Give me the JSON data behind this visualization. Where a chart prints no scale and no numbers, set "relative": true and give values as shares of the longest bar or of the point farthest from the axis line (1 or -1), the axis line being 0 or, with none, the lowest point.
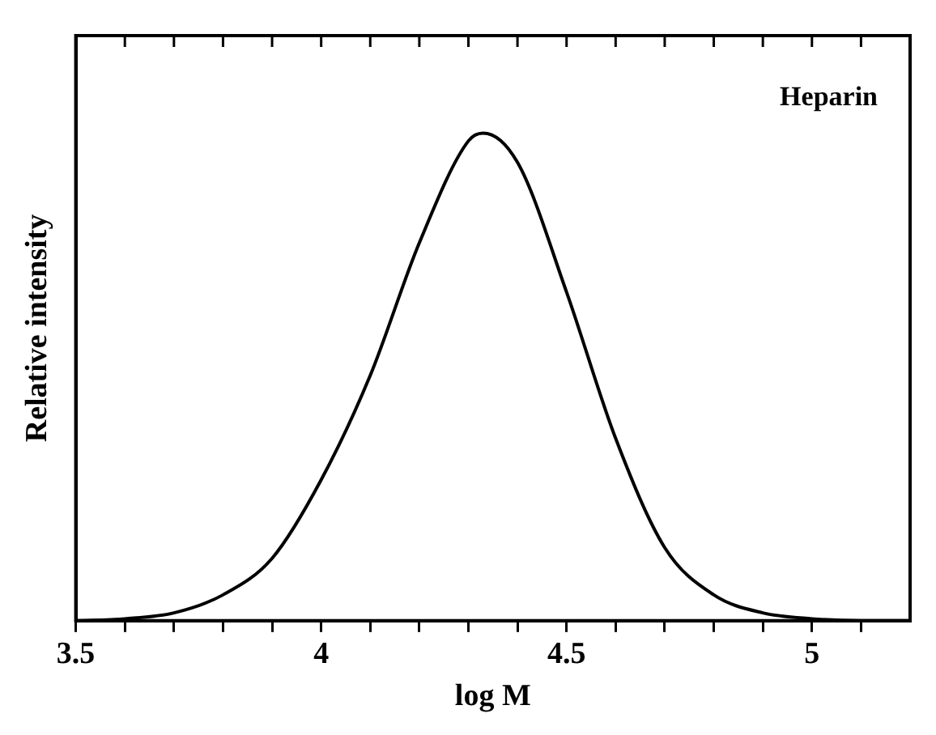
{
  "chart_data": {
    "type": "line",
    "xlabel": "log M",
    "ylabel": "Relative intensity",
    "relative": true,
    "grid": false,
    "legend": false,
    "marker": "none",
    "line_style": "solid",
    "xlim": [
      3.5,
      5.2
    ],
    "xticks": [
      3.5,
      {
        "value": 3.6,
        "label": null
      },
      {
        "value": 3.7,
        "label": null
      },
      {
        "value": 3.8,
        "label": null
      },
      {
        "value": 3.9,
        "label": null
      },
      4,
      {
        "value": 4.1,
        "label": null
      },
      {
        "value": 4.2,
        "label": null
      },
      {
        "value": 4.3,
        "label": null
      },
      {
        "value": 4.4,
        "label": null
      },
      4.5,
      {
        "value": 4.6,
        "label": null
      },
      {
        "value": 4.7,
        "label": null
      },
      {
        "value": 4.8,
        "label": null
      },
      {
        "value": 4.9,
        "label": null
      },
      5,
      {
        "value": 5.1,
        "label": null
      }
    ],
    "series": [
      {
        "name": "Heparin",
        "color": "#000000",
        "x": [
          3.5,
          3.6,
          3.7,
          3.8,
          3.9,
          4.0,
          4.1,
          4.2,
          4.3,
          4.33,
          4.4,
          4.5,
          4.6,
          4.7,
          4.8,
          4.9,
          5.0,
          5.1,
          5.2
        ],
        "values": [
          0,
          0.004,
          0.016,
          0.053,
          0.128,
          0.289,
          0.503,
          0.775,
          0.984,
          1,
          0.94,
          0.674,
          0.374,
          0.15,
          0.053,
          0.016,
          0.004,
          0,
          0
        ]
      }
    ]
  }
}
